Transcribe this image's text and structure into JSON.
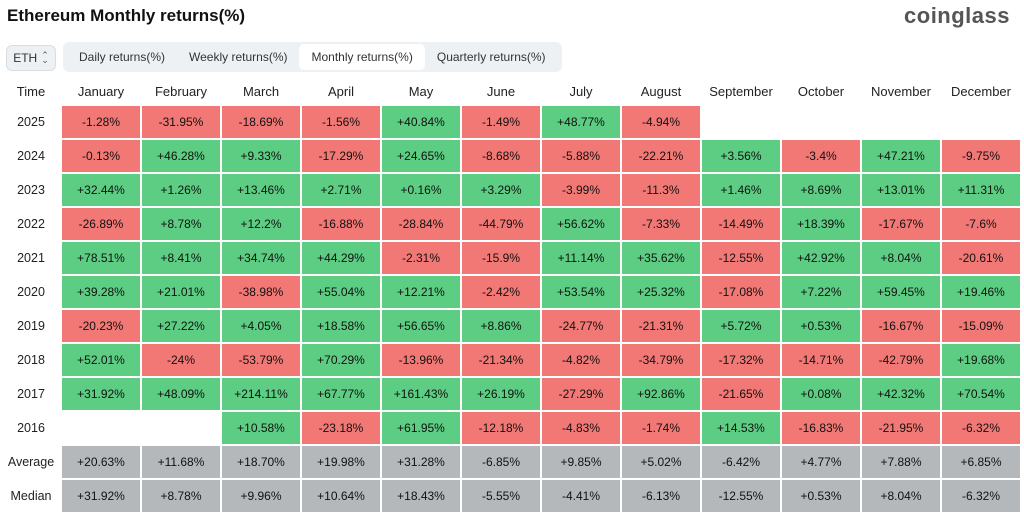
{
  "header": {
    "title": "Ethereum Monthly returns(%)",
    "brand": "coinglass"
  },
  "asset_select": {
    "value": "ETH"
  },
  "tabs": [
    {
      "label": "Daily returns(%)",
      "active": false
    },
    {
      "label": "Weekly returns(%)",
      "active": false
    },
    {
      "label": "Monthly returns(%)",
      "active": true
    },
    {
      "label": "Quarterly returns(%)",
      "active": false
    }
  ],
  "colors": {
    "positive": "#5ccd82",
    "negative": "#f27876",
    "stat": "#b5b8bb"
  },
  "table": {
    "corner": "Time",
    "columns": [
      "January",
      "February",
      "March",
      "April",
      "May",
      "June",
      "July",
      "August",
      "September",
      "October",
      "November",
      "December"
    ],
    "rows": [
      {
        "label": "2025",
        "cells": [
          "-1.28%",
          "-31.95%",
          "-18.69%",
          "-1.56%",
          "+40.84%",
          "-1.49%",
          "+48.77%",
          "-4.94%",
          "",
          "",
          "",
          ""
        ]
      },
      {
        "label": "2024",
        "cells": [
          "-0.13%",
          "+46.28%",
          "+9.33%",
          "-17.29%",
          "+24.65%",
          "-8.68%",
          "-5.88%",
          "-22.21%",
          "+3.56%",
          "-3.4%",
          "+47.21%",
          "-9.75%"
        ]
      },
      {
        "label": "2023",
        "cells": [
          "+32.44%",
          "+1.26%",
          "+13.46%",
          "+2.71%",
          "+0.16%",
          "+3.29%",
          "-3.99%",
          "-11.3%",
          "+1.46%",
          "+8.69%",
          "+13.01%",
          "+11.31%"
        ]
      },
      {
        "label": "2022",
        "cells": [
          "-26.89%",
          "+8.78%",
          "+12.2%",
          "-16.88%",
          "-28.84%",
          "-44.79%",
          "+56.62%",
          "-7.33%",
          "-14.49%",
          "+18.39%",
          "-17.67%",
          "-7.6%"
        ]
      },
      {
        "label": "2021",
        "cells": [
          "+78.51%",
          "+8.41%",
          "+34.74%",
          "+44.29%",
          "-2.31%",
          "-15.9%",
          "+11.14%",
          "+35.62%",
          "-12.55%",
          "+42.92%",
          "+8.04%",
          "-20.61%"
        ]
      },
      {
        "label": "2020",
        "cells": [
          "+39.28%",
          "+21.01%",
          "-38.98%",
          "+55.04%",
          "+12.21%",
          "-2.42%",
          "+53.54%",
          "+25.32%",
          "-17.08%",
          "+7.22%",
          "+59.45%",
          "+19.46%"
        ]
      },
      {
        "label": "2019",
        "cells": [
          "-20.23%",
          "+27.22%",
          "+4.05%",
          "+18.58%",
          "+56.65%",
          "+8.86%",
          "-24.77%",
          "-21.31%",
          "+5.72%",
          "+0.53%",
          "-16.67%",
          "-15.09%"
        ]
      },
      {
        "label": "2018",
        "cells": [
          "+52.01%",
          "-24%",
          "-53.79%",
          "+70.29%",
          "-13.96%",
          "-21.34%",
          "-4.82%",
          "-34.79%",
          "-17.32%",
          "-14.71%",
          "-42.79%",
          "+19.68%"
        ]
      },
      {
        "label": "2017",
        "cells": [
          "+31.92%",
          "+48.09%",
          "+214.11%",
          "+67.77%",
          "+161.43%",
          "+26.19%",
          "-27.29%",
          "+92.86%",
          "-21.65%",
          "+0.08%",
          "+42.32%",
          "+70.54%"
        ]
      },
      {
        "label": "2016",
        "cells": [
          "",
          "",
          "+10.58%",
          "-23.18%",
          "+61.95%",
          "-12.18%",
          "-4.83%",
          "-1.74%",
          "+14.53%",
          "-16.83%",
          "-21.95%",
          "-6.32%"
        ]
      },
      {
        "label": "Average",
        "stat": true,
        "cells": [
          "+20.63%",
          "+11.68%",
          "+18.70%",
          "+19.98%",
          "+31.28%",
          "-6.85%",
          "+9.85%",
          "+5.02%",
          "-6.42%",
          "+4.77%",
          "+7.88%",
          "+6.85%"
        ]
      },
      {
        "label": "Median",
        "stat": true,
        "cells": [
          "+31.92%",
          "+8.78%",
          "+9.96%",
          "+10.64%",
          "+18.43%",
          "-5.55%",
          "-4.41%",
          "-6.13%",
          "-12.55%",
          "+0.53%",
          "+8.04%",
          "-6.32%"
        ]
      }
    ]
  }
}
